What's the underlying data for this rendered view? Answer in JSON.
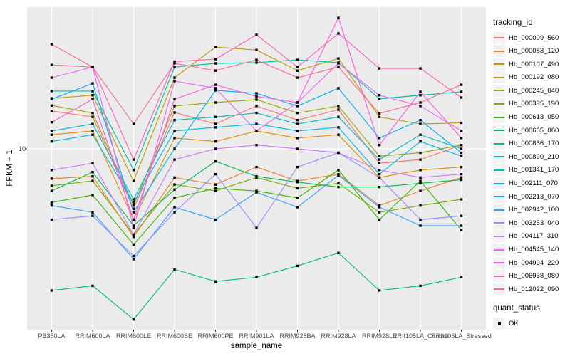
{
  "figure": {
    "background": "#ffffff",
    "panel_background": "#ebebeb",
    "gridline_color": "#ffffff",
    "point_color": "#000000"
  },
  "y_axis": {
    "title": "FPKM + 1",
    "tick_label": "10",
    "scale": "log10"
  },
  "x_axis": {
    "title": "sample_name"
  },
  "legend": {
    "tracking_title": "tracking_id",
    "quant_title": "quant_status",
    "quant_items": [
      {
        "label": "OK",
        "marker": "black-square"
      }
    ]
  },
  "chart_data": {
    "type": "line",
    "title": "",
    "xlabel": "sample_name",
    "ylabel": "FPKM + 1",
    "y_scale": "log10",
    "ylim": [
      0.97,
      62.5
    ],
    "y_ticks": [
      10
    ],
    "grid": "major-only",
    "legend_position": "right",
    "point_marker": "black-square",
    "categories": [
      "PB350LA",
      "RRIM600LA",
      "RRIM600LE",
      "RRIM600SE",
      "RRIM600PE",
      "RRIM901LA",
      "RRIM928BA",
      "RRIM928LA",
      "RRIM928LE",
      "RRII105LA_Control",
      "RRII105LA_Stressed"
    ],
    "series": [
      {
        "name": "Hb_000009_560",
        "color": "#F8766D",
        "values": [
          16.3,
          15.1,
          4.6,
          16.0,
          13.8,
          17.4,
          14.5,
          16.6,
          8.3,
          8.7,
          10.5
        ]
      },
      {
        "name": "Hb_000083_120",
        "color": "#EA8331",
        "values": [
          6.8,
          7.0,
          3.2,
          6.9,
          6.3,
          7.9,
          6.6,
          7.2,
          4.8,
          5.8,
          6.9
        ]
      },
      {
        "name": "Hb_000107_490",
        "color": "#D89000",
        "values": [
          12.0,
          12.6,
          4.0,
          11.5,
          11.0,
          12.6,
          11.5,
          12.0,
          6.9,
          7.6,
          7.9
        ]
      },
      {
        "name": "Hb_000192_080",
        "color": "#C09B00",
        "values": [
          19.2,
          20.0,
          6.6,
          25.1,
          37.3,
          35.9,
          27.5,
          32.2,
          15.1,
          13.8,
          14.0
        ]
      },
      {
        "name": "Hb_000245_040",
        "color": "#A3A500",
        "values": [
          17.5,
          15.9,
          4.8,
          17.4,
          18.2,
          18.9,
          15.9,
          17.4,
          9.1,
          9.5,
          10.5
        ]
      },
      {
        "name": "Hb_000395_190",
        "color": "#7CAE00",
        "values": [
          6.2,
          6.6,
          3.3,
          6.3,
          5.8,
          6.9,
          6.0,
          6.4,
          4.4,
          4.8,
          5.2
        ]
      },
      {
        "name": "Hb_000613_050",
        "color": "#39B600",
        "values": [
          5.0,
          5.5,
          2.9,
          5.3,
          6.0,
          5.8,
          5.3,
          7.6,
          4.0,
          6.6,
          3.5
        ]
      },
      {
        "name": "Hb_000665_060",
        "color": "#00BB4E",
        "values": [
          5.8,
          7.4,
          3.7,
          5.9,
          8.5,
          7.0,
          6.5,
          6.1,
          6.1,
          6.4,
          6.7
        ]
      },
      {
        "name": "Hb_000866_170",
        "color": "#00BF7D",
        "values": [
          1.6,
          1.7,
          1.1,
          2.1,
          1.8,
          1.9,
          2.2,
          2.6,
          1.6,
          1.7,
          1.9
        ]
      },
      {
        "name": "Hb_000890_210",
        "color": "#00C1A3",
        "values": [
          21.1,
          21.1,
          7.6,
          28.8,
          30.2,
          30.5,
          31.6,
          30.5,
          19.1,
          20.0,
          20.9
        ]
      },
      {
        "name": "Hb_001341_170",
        "color": "#00BFC4",
        "values": [
          12.6,
          13.8,
          5.2,
          14.5,
          15.1,
          15.9,
          13.8,
          15.1,
          8.7,
          12.0,
          10.0
        ]
      },
      {
        "name": "Hb_002111_070",
        "color": "#00BAE0",
        "values": [
          11.0,
          12.0,
          5.0,
          12.6,
          13.2,
          13.8,
          12.6,
          13.2,
          7.2,
          11.0,
          9.1
        ]
      },
      {
        "name": "Hb_002213_070",
        "color": "#00B0F6",
        "values": [
          19.0,
          23.3,
          4.4,
          10.0,
          21.3,
          20.5,
          17.4,
          21.9,
          11.5,
          14.5,
          9.5
        ]
      },
      {
        "name": "Hb_002942_100",
        "color": "#35A2FF",
        "values": [
          4.8,
          4.4,
          2.4,
          4.7,
          4.0,
          5.7,
          4.7,
          7.1,
          4.7,
          3.7,
          3.7
        ]
      },
      {
        "name": "Hb_003253_040",
        "color": "#9590FF",
        "values": [
          4.0,
          4.2,
          2.5,
          4.4,
          7.2,
          3.6,
          7.9,
          9.5,
          6.9,
          4.0,
          4.2
        ]
      },
      {
        "name": "Hb_004117_310",
        "color": "#C77CFF",
        "values": [
          7.6,
          8.3,
          3.3,
          8.7,
          10.0,
          10.5,
          10.0,
          9.5,
          7.6,
          6.9,
          7.2
        ]
      },
      {
        "name": "Hb_004545_140",
        "color": "#E76BF3",
        "values": [
          25.1,
          28.8,
          3.6,
          24.0,
          21.9,
          12.6,
          18.2,
          30.2,
          20.0,
          17.4,
          12.6
        ]
      },
      {
        "name": "Hb_004994_220",
        "color": "#FA62DB",
        "values": [
          14.1,
          19.0,
          4.0,
          19.0,
          22.9,
          19.7,
          18.2,
          54.4,
          10.5,
          20.9,
          11.5
        ]
      },
      {
        "name": "Hb_006938_080",
        "color": "#FF62BC",
        "values": [
          29.6,
          28.8,
          8.7,
          30.9,
          31.9,
          43.7,
          28.8,
          44.5,
          28.3,
          28.3,
          19.4
        ]
      },
      {
        "name": "Hb_012022_090",
        "color": "#FF6A98",
        "values": [
          38.7,
          28.8,
          13.8,
          30.2,
          27.5,
          31.6,
          25.1,
          28.8,
          15.8,
          18.2,
          22.9
        ]
      }
    ]
  }
}
